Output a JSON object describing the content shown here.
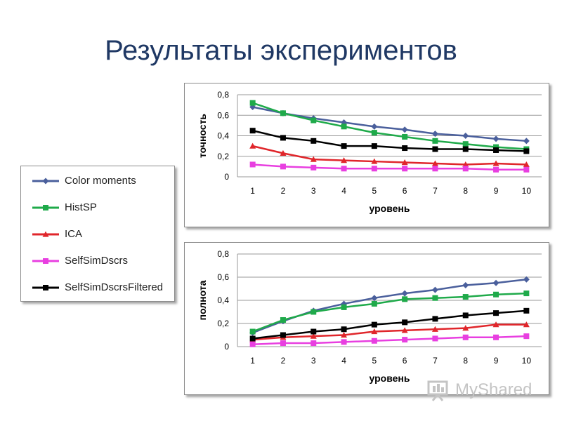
{
  "slide": {
    "title": "Результаты экспериментов"
  },
  "legend": {
    "items": [
      {
        "name": "Color moments",
        "color": "#4a5f9c",
        "marker": "diamond"
      },
      {
        "name": "HistSP",
        "color": "#1faa4a",
        "marker": "square"
      },
      {
        "name": "ICA",
        "color": "#e0262b",
        "marker": "triangle"
      },
      {
        "name": "SelfSimDscrs",
        "color": "#e83fe0",
        "marker": "square"
      },
      {
        "name": "SelfSimDscrsFiltered",
        "color": "#000000",
        "marker": "square"
      }
    ]
  },
  "watermark": {
    "text": "MyShared",
    "icon": "presentation-board-icon"
  },
  "chart_data": [
    {
      "type": "line",
      "xlabel": "уровень",
      "ylabel": "точность",
      "x": [
        1,
        2,
        3,
        4,
        5,
        6,
        7,
        8,
        9,
        10
      ],
      "ylim": [
        0,
        0.8
      ],
      "yticks": [
        "0",
        "0,2",
        "0,4",
        "0,6",
        "0,8"
      ],
      "grid": true,
      "series": [
        {
          "name": "Color moments",
          "values": [
            0.68,
            0.62,
            0.57,
            0.53,
            0.49,
            0.46,
            0.42,
            0.4,
            0.37,
            0.35
          ]
        },
        {
          "name": "HistSP",
          "values": [
            0.72,
            0.62,
            0.55,
            0.49,
            0.43,
            0.39,
            0.35,
            0.32,
            0.29,
            0.27
          ]
        },
        {
          "name": "ICA",
          "values": [
            0.3,
            0.23,
            0.17,
            0.16,
            0.15,
            0.14,
            0.13,
            0.12,
            0.13,
            0.12
          ]
        },
        {
          "name": "SelfSimDscrs",
          "values": [
            0.12,
            0.1,
            0.09,
            0.08,
            0.08,
            0.08,
            0.08,
            0.08,
            0.07,
            0.07
          ]
        },
        {
          "name": "SelfSimDscrsFiltered",
          "values": [
            0.45,
            0.38,
            0.35,
            0.3,
            0.3,
            0.28,
            0.27,
            0.27,
            0.26,
            0.25
          ]
        }
      ]
    },
    {
      "type": "line",
      "xlabel": "уровень",
      "ylabel": "полнота",
      "x": [
        1,
        2,
        3,
        4,
        5,
        6,
        7,
        8,
        9,
        10
      ],
      "ylim": [
        0,
        0.8
      ],
      "yticks": [
        "0",
        "0,2",
        "0,4",
        "0,6",
        "0,8"
      ],
      "grid": true,
      "series": [
        {
          "name": "Color moments",
          "values": [
            0.12,
            0.22,
            0.31,
            0.37,
            0.42,
            0.46,
            0.49,
            0.53,
            0.55,
            0.58
          ]
        },
        {
          "name": "HistSP",
          "values": [
            0.13,
            0.23,
            0.3,
            0.34,
            0.37,
            0.41,
            0.42,
            0.43,
            0.45,
            0.46
          ]
        },
        {
          "name": "ICA",
          "values": [
            0.06,
            0.08,
            0.09,
            0.1,
            0.13,
            0.14,
            0.15,
            0.16,
            0.19,
            0.19
          ]
        },
        {
          "name": "SelfSimDscrs",
          "values": [
            0.02,
            0.03,
            0.03,
            0.04,
            0.05,
            0.06,
            0.07,
            0.08,
            0.08,
            0.09
          ]
        },
        {
          "name": "SelfSimDscrsFiltered",
          "values": [
            0.07,
            0.1,
            0.13,
            0.15,
            0.19,
            0.21,
            0.24,
            0.27,
            0.29,
            0.31
          ]
        }
      ]
    }
  ]
}
